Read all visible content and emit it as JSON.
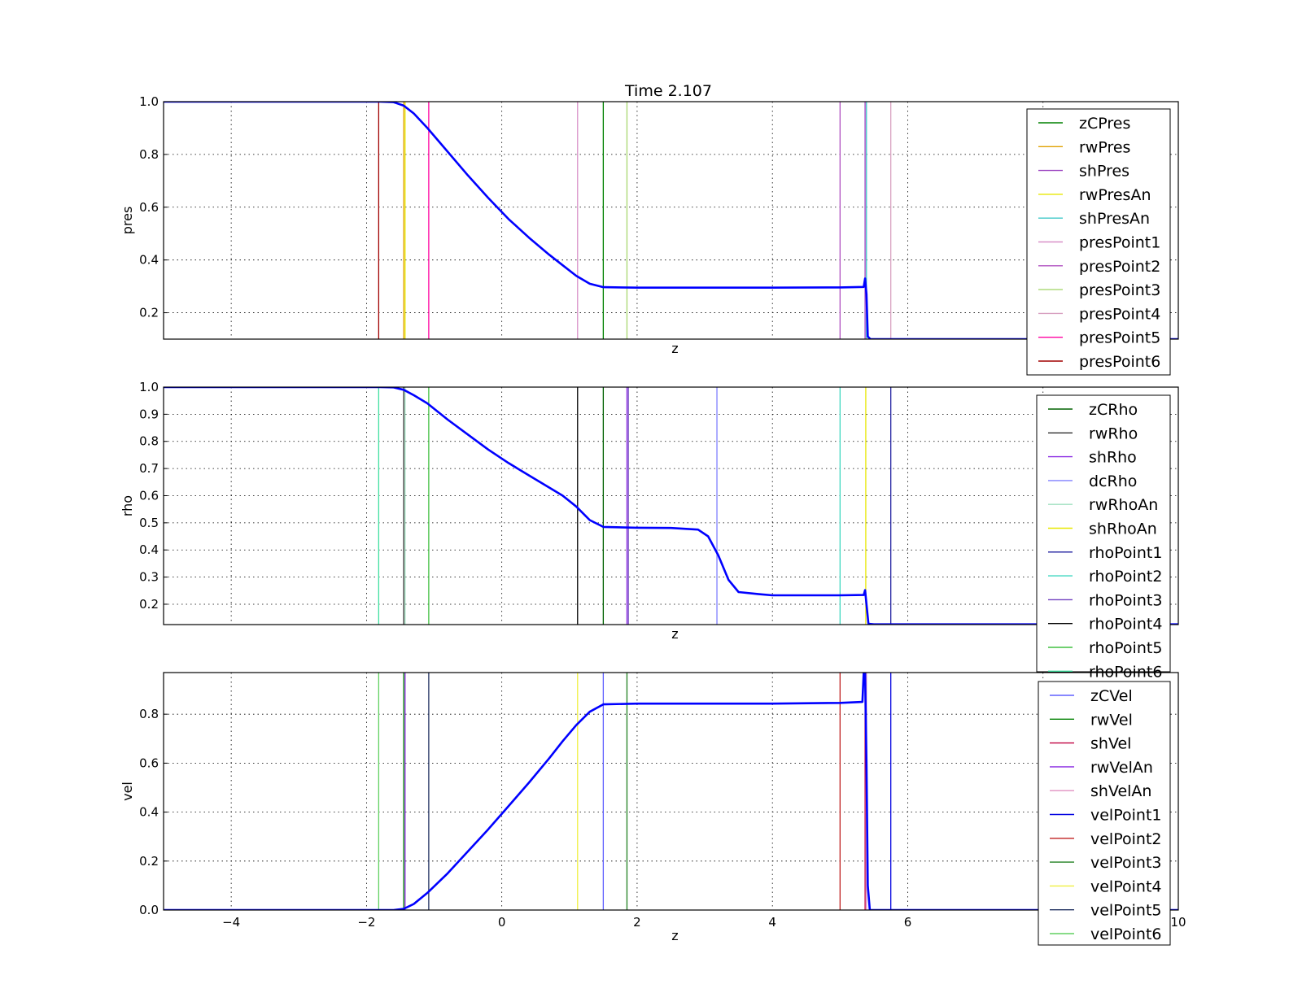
{
  "chart_data": [
    {
      "type": "line",
      "title": "Time 2.107",
      "xlabel": "z",
      "ylabel": "pres",
      "xlim": [
        -5,
        10
      ],
      "ylim": [
        0.1,
        1.0
      ],
      "yticks": [
        0.2,
        0.4,
        0.6,
        0.8,
        1.0
      ],
      "grid": true,
      "legend_position": "right",
      "curve": {
        "color": "#0000ff",
        "points": [
          [
            -5,
            1.0
          ],
          [
            -1.8,
            1.0
          ],
          [
            -1.6,
            0.998
          ],
          [
            -1.45,
            0.985
          ],
          [
            -1.3,
            0.955
          ],
          [
            -1.1,
            0.9
          ],
          [
            -0.8,
            0.81
          ],
          [
            -0.5,
            0.72
          ],
          [
            -0.2,
            0.635
          ],
          [
            0.1,
            0.555
          ],
          [
            0.4,
            0.485
          ],
          [
            0.7,
            0.42
          ],
          [
            0.9,
            0.38
          ],
          [
            1.1,
            0.34
          ],
          [
            1.3,
            0.31
          ],
          [
            1.5,
            0.297
          ],
          [
            2.0,
            0.295
          ],
          [
            3.0,
            0.295
          ],
          [
            4.0,
            0.295
          ],
          [
            5.0,
            0.296
          ],
          [
            5.35,
            0.298
          ],
          [
            5.37,
            0.33
          ],
          [
            5.39,
            0.27
          ],
          [
            5.41,
            0.11
          ],
          [
            5.45,
            0.1
          ],
          [
            10,
            0.1
          ]
        ]
      },
      "vlines": [
        {
          "name": "zCPres",
          "x": 1.5,
          "color": "#008000"
        },
        {
          "name": "rwPres",
          "x": -1.45,
          "color": "#e0a000"
        },
        {
          "name": "shPres",
          "x": 5.37,
          "color": "#9a40c0"
        },
        {
          "name": "rwPresAn",
          "x": -1.43,
          "color": "#e8e800"
        },
        {
          "name": "shPresAn",
          "x": 5.39,
          "color": "#40c8c8"
        },
        {
          "name": "presPoint1",
          "x": 1.12,
          "color": "#d890c8"
        },
        {
          "name": "presPoint2",
          "x": 5.0,
          "color": "#b050c0"
        },
        {
          "name": "presPoint3",
          "x": 1.85,
          "color": "#a8d870"
        },
        {
          "name": "presPoint4",
          "x": 5.75,
          "color": "#d8a0c0"
        },
        {
          "name": "presPoint5",
          "x": -1.08,
          "color": "#ff00a0"
        },
        {
          "name": "presPoint6",
          "x": -1.82,
          "color": "#a00000"
        }
      ]
    },
    {
      "type": "line",
      "xlabel": "z",
      "ylabel": "rho",
      "xlim": [
        -5,
        10
      ],
      "ylim": [
        0.125,
        1.0
      ],
      "yticks": [
        0.2,
        0.3,
        0.4,
        0.5,
        0.6,
        0.7,
        0.8,
        0.9,
        1.0
      ],
      "grid": true,
      "legend_position": "right",
      "curve": {
        "color": "#0000ff",
        "points": [
          [
            -5,
            1.0
          ],
          [
            -1.8,
            1.0
          ],
          [
            -1.6,
            0.999
          ],
          [
            -1.45,
            0.99
          ],
          [
            -1.3,
            0.97
          ],
          [
            -1.1,
            0.94
          ],
          [
            -0.8,
            0.88
          ],
          [
            -0.5,
            0.825
          ],
          [
            -0.2,
            0.77
          ],
          [
            0.1,
            0.72
          ],
          [
            0.4,
            0.675
          ],
          [
            0.7,
            0.63
          ],
          [
            0.9,
            0.6
          ],
          [
            1.1,
            0.56
          ],
          [
            1.3,
            0.51
          ],
          [
            1.5,
            0.485
          ],
          [
            2.0,
            0.482
          ],
          [
            2.5,
            0.481
          ],
          [
            2.9,
            0.475
          ],
          [
            3.05,
            0.45
          ],
          [
            3.2,
            0.38
          ],
          [
            3.35,
            0.29
          ],
          [
            3.5,
            0.245
          ],
          [
            3.8,
            0.237
          ],
          [
            4.0,
            0.233
          ],
          [
            5.0,
            0.233
          ],
          [
            5.35,
            0.234
          ],
          [
            5.37,
            0.252
          ],
          [
            5.39,
            0.2
          ],
          [
            5.42,
            0.128
          ],
          [
            5.5,
            0.126
          ],
          [
            10,
            0.126
          ]
        ]
      },
      "vlines": [
        {
          "name": "zCRho",
          "x": 1.5,
          "color": "#006000"
        },
        {
          "name": "rwRho",
          "x": -1.45,
          "color": "#303030"
        },
        {
          "name": "shRho",
          "x": 1.85,
          "color": "#8a2be2"
        },
        {
          "name": "dcRho",
          "x": 3.18,
          "color": "#8080ff"
        },
        {
          "name": "rwRhoAn",
          "x": -1.43,
          "color": "#a0e0c0"
        },
        {
          "name": "shRhoAn",
          "x": 5.38,
          "color": "#e8e800"
        },
        {
          "name": "rhoPoint1",
          "x": 5.75,
          "color": "#2020a0"
        },
        {
          "name": "rhoPoint2",
          "x": 5.0,
          "color": "#40d8c0"
        },
        {
          "name": "rhoPoint3",
          "x": 1.87,
          "color": "#7040c0"
        },
        {
          "name": "rhoPoint4",
          "x": 1.12,
          "color": "#000000"
        },
        {
          "name": "rhoPoint5",
          "x": -1.08,
          "color": "#40c040"
        },
        {
          "name": "rhoPoint6",
          "x": -1.82,
          "color": "#40e0a0"
        }
      ]
    },
    {
      "type": "line",
      "xlabel": "z",
      "ylabel": "vel",
      "xlim": [
        -5,
        10
      ],
      "ylim": [
        0.0,
        0.97
      ],
      "yticks": [
        0.0,
        0.2,
        0.4,
        0.6,
        0.8
      ],
      "xticks": [
        -4,
        -2,
        0,
        2,
        4,
        6,
        10
      ],
      "grid": true,
      "legend_position": "right",
      "curve": {
        "color": "#0000ff",
        "points": [
          [
            -5,
            0.0
          ],
          [
            -1.6,
            0.0
          ],
          [
            -1.45,
            0.005
          ],
          [
            -1.3,
            0.025
          ],
          [
            -1.1,
            0.07
          ],
          [
            -0.8,
            0.15
          ],
          [
            -0.5,
            0.24
          ],
          [
            -0.2,
            0.33
          ],
          [
            0.1,
            0.425
          ],
          [
            0.4,
            0.52
          ],
          [
            0.7,
            0.62
          ],
          [
            0.9,
            0.69
          ],
          [
            1.1,
            0.755
          ],
          [
            1.3,
            0.81
          ],
          [
            1.5,
            0.84
          ],
          [
            2.0,
            0.843
          ],
          [
            3.0,
            0.843
          ],
          [
            4.0,
            0.843
          ],
          [
            5.0,
            0.846
          ],
          [
            5.33,
            0.85
          ],
          [
            5.35,
            0.97
          ],
          [
            5.37,
            0.97
          ],
          [
            5.39,
            0.6
          ],
          [
            5.41,
            0.1
          ],
          [
            5.44,
            0.0
          ],
          [
            10,
            0.0
          ]
        ]
      },
      "vlines": [
        {
          "name": "zCVel",
          "x": 1.5,
          "color": "#6060ff"
        },
        {
          "name": "rwVel",
          "x": -1.45,
          "color": "#008000"
        },
        {
          "name": "shVel",
          "x": 5.37,
          "color": "#c00040"
        },
        {
          "name": "rwVelAn",
          "x": -1.43,
          "color": "#8a2be2"
        },
        {
          "name": "shVelAn",
          "x": 5.39,
          "color": "#e090c0"
        },
        {
          "name": "velPoint1",
          "x": 5.75,
          "color": "#0000e0"
        },
        {
          "name": "velPoint2",
          "x": 5.0,
          "color": "#c02020"
        },
        {
          "name": "velPoint3",
          "x": 1.85,
          "color": "#208020"
        },
        {
          "name": "velPoint4",
          "x": 1.12,
          "color": "#f0f040"
        },
        {
          "name": "velPoint5",
          "x": -1.08,
          "color": "#203060"
        },
        {
          "name": "velPoint6",
          "x": -1.82,
          "color": "#60d060"
        }
      ]
    }
  ]
}
